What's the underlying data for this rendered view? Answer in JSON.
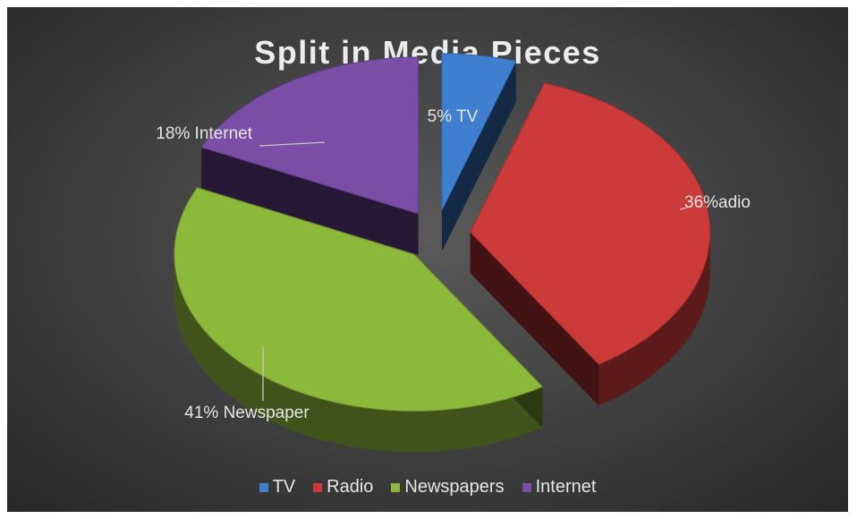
{
  "chart_data": {
    "type": "pie",
    "title": "Split in Media Pieces",
    "categories": [
      "TV",
      "Radio",
      "Newspapers",
      "Internet"
    ],
    "values": [
      5,
      36,
      41,
      18
    ],
    "colors": [
      "#3f7fd0",
      "#cc3a3a",
      "#8cb93a",
      "#7a4ea6"
    ],
    "data_labels": [
      "5% TV",
      "36%adio",
      "41% Newspaper",
      "18% Internet"
    ],
    "exploded": true,
    "style": "3d",
    "legend_position": "bottom"
  }
}
